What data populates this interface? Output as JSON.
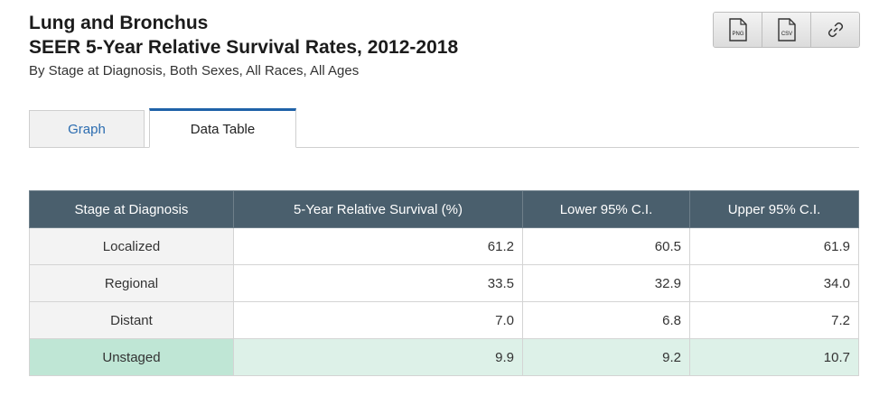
{
  "header": {
    "title_line1": "Lung and Bronchus",
    "title_line2": "SEER 5-Year Relative Survival Rates, 2012-2018",
    "subtitle": "By Stage at Diagnosis, Both Sexes, All Races, All Ages"
  },
  "toolbar": {
    "png_label": "PNG",
    "csv_label": "CSV",
    "link_icon": "link-icon"
  },
  "tabs": [
    {
      "label": "Graph",
      "active": false
    },
    {
      "label": "Data Table",
      "active": true
    }
  ],
  "table": {
    "headers": [
      "Stage at Diagnosis",
      "5-Year Relative Survival (%)",
      "Lower 95% C.I.",
      "Upper 95% C.I."
    ],
    "rows": [
      {
        "stage": "Localized",
        "survival": "61.2",
        "lower": "60.5",
        "upper": "61.9"
      },
      {
        "stage": "Regional",
        "survival": "33.5",
        "lower": "32.9",
        "upper": "34.0"
      },
      {
        "stage": "Distant",
        "survival": "7.0",
        "lower": "6.8",
        "upper": "7.2"
      },
      {
        "stage": "Unstaged",
        "survival": "9.9",
        "lower": "9.2",
        "upper": "10.7"
      }
    ]
  },
  "colors": {
    "header_bg": "#4a5f6d",
    "highlight_stage": "#bfe6d5",
    "highlight_cell": "#ddf1e8",
    "active_tab_accent": "#1f62a8",
    "link_color": "#2b6cb0"
  }
}
